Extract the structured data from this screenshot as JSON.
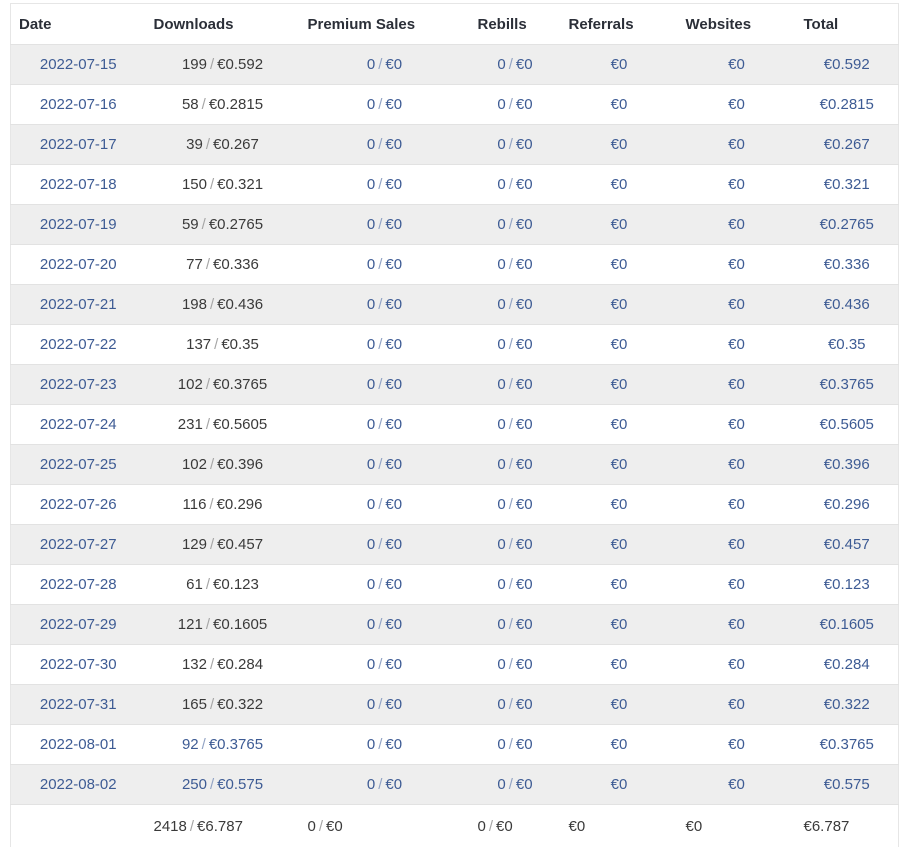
{
  "table": {
    "columns": [
      "Date",
      "Downloads",
      "Premium Sales",
      "Rebills",
      "Referrals",
      "Websites",
      "Total"
    ],
    "separator": "/",
    "rows": [
      {
        "date": "2022-07-15",
        "downloads": {
          "count": "199",
          "amount": "€0.592",
          "link": false
        },
        "premium": {
          "count": "0",
          "amount": "€0"
        },
        "rebills": {
          "count": "0",
          "amount": "€0"
        },
        "referrals": "€0",
        "websites": "€0",
        "total": "€0.592"
      },
      {
        "date": "2022-07-16",
        "downloads": {
          "count": "58",
          "amount": "€0.2815",
          "link": false
        },
        "premium": {
          "count": "0",
          "amount": "€0"
        },
        "rebills": {
          "count": "0",
          "amount": "€0"
        },
        "referrals": "€0",
        "websites": "€0",
        "total": "€0.2815"
      },
      {
        "date": "2022-07-17",
        "downloads": {
          "count": "39",
          "amount": "€0.267",
          "link": false
        },
        "premium": {
          "count": "0",
          "amount": "€0"
        },
        "rebills": {
          "count": "0",
          "amount": "€0"
        },
        "referrals": "€0",
        "websites": "€0",
        "total": "€0.267"
      },
      {
        "date": "2022-07-18",
        "downloads": {
          "count": "150",
          "amount": "€0.321",
          "link": false
        },
        "premium": {
          "count": "0",
          "amount": "€0"
        },
        "rebills": {
          "count": "0",
          "amount": "€0"
        },
        "referrals": "€0",
        "websites": "€0",
        "total": "€0.321"
      },
      {
        "date": "2022-07-19",
        "downloads": {
          "count": "59",
          "amount": "€0.2765",
          "link": false
        },
        "premium": {
          "count": "0",
          "amount": "€0"
        },
        "rebills": {
          "count": "0",
          "amount": "€0"
        },
        "referrals": "€0",
        "websites": "€0",
        "total": "€0.2765"
      },
      {
        "date": "2022-07-20",
        "downloads": {
          "count": "77",
          "amount": "€0.336",
          "link": false
        },
        "premium": {
          "count": "0",
          "amount": "€0"
        },
        "rebills": {
          "count": "0",
          "amount": "€0"
        },
        "referrals": "€0",
        "websites": "€0",
        "total": "€0.336"
      },
      {
        "date": "2022-07-21",
        "downloads": {
          "count": "198",
          "amount": "€0.436",
          "link": false
        },
        "premium": {
          "count": "0",
          "amount": "€0"
        },
        "rebills": {
          "count": "0",
          "amount": "€0"
        },
        "referrals": "€0",
        "websites": "€0",
        "total": "€0.436"
      },
      {
        "date": "2022-07-22",
        "downloads": {
          "count": "137",
          "amount": "€0.35",
          "link": false
        },
        "premium": {
          "count": "0",
          "amount": "€0"
        },
        "rebills": {
          "count": "0",
          "amount": "€0"
        },
        "referrals": "€0",
        "websites": "€0",
        "total": "€0.35"
      },
      {
        "date": "2022-07-23",
        "downloads": {
          "count": "102",
          "amount": "€0.3765",
          "link": false
        },
        "premium": {
          "count": "0",
          "amount": "€0"
        },
        "rebills": {
          "count": "0",
          "amount": "€0"
        },
        "referrals": "€0",
        "websites": "€0",
        "total": "€0.3765"
      },
      {
        "date": "2022-07-24",
        "downloads": {
          "count": "231",
          "amount": "€0.5605",
          "link": false
        },
        "premium": {
          "count": "0",
          "amount": "€0"
        },
        "rebills": {
          "count": "0",
          "amount": "€0"
        },
        "referrals": "€0",
        "websites": "€0",
        "total": "€0.5605"
      },
      {
        "date": "2022-07-25",
        "downloads": {
          "count": "102",
          "amount": "€0.396",
          "link": false
        },
        "premium": {
          "count": "0",
          "amount": "€0"
        },
        "rebills": {
          "count": "0",
          "amount": "€0"
        },
        "referrals": "€0",
        "websites": "€0",
        "total": "€0.396"
      },
      {
        "date": "2022-07-26",
        "downloads": {
          "count": "116",
          "amount": "€0.296",
          "link": false
        },
        "premium": {
          "count": "0",
          "amount": "€0"
        },
        "rebills": {
          "count": "0",
          "amount": "€0"
        },
        "referrals": "€0",
        "websites": "€0",
        "total": "€0.296"
      },
      {
        "date": "2022-07-27",
        "downloads": {
          "count": "129",
          "amount": "€0.457",
          "link": false
        },
        "premium": {
          "count": "0",
          "amount": "€0"
        },
        "rebills": {
          "count": "0",
          "amount": "€0"
        },
        "referrals": "€0",
        "websites": "€0",
        "total": "€0.457"
      },
      {
        "date": "2022-07-28",
        "downloads": {
          "count": "61",
          "amount": "€0.123",
          "link": false
        },
        "premium": {
          "count": "0",
          "amount": "€0"
        },
        "rebills": {
          "count": "0",
          "amount": "€0"
        },
        "referrals": "€0",
        "websites": "€0",
        "total": "€0.123"
      },
      {
        "date": "2022-07-29",
        "downloads": {
          "count": "121",
          "amount": "€0.1605",
          "link": false
        },
        "premium": {
          "count": "0",
          "amount": "€0"
        },
        "rebills": {
          "count": "0",
          "amount": "€0"
        },
        "referrals": "€0",
        "websites": "€0",
        "total": "€0.1605"
      },
      {
        "date": "2022-07-30",
        "downloads": {
          "count": "132",
          "amount": "€0.284",
          "link": false
        },
        "premium": {
          "count": "0",
          "amount": "€0"
        },
        "rebills": {
          "count": "0",
          "amount": "€0"
        },
        "referrals": "€0",
        "websites": "€0",
        "total": "€0.284"
      },
      {
        "date": "2022-07-31",
        "downloads": {
          "count": "165",
          "amount": "€0.322",
          "link": false
        },
        "premium": {
          "count": "0",
          "amount": "€0"
        },
        "rebills": {
          "count": "0",
          "amount": "€0"
        },
        "referrals": "€0",
        "websites": "€0",
        "total": "€0.322"
      },
      {
        "date": "2022-08-01",
        "downloads": {
          "count": "92",
          "amount": "€0.3765",
          "link": true
        },
        "premium": {
          "count": "0",
          "amount": "€0"
        },
        "rebills": {
          "count": "0",
          "amount": "€0"
        },
        "referrals": "€0",
        "websites": "€0",
        "total": "€0.3765"
      },
      {
        "date": "2022-08-02",
        "downloads": {
          "count": "250",
          "amount": "€0.575",
          "link": true
        },
        "premium": {
          "count": "0",
          "amount": "€0"
        },
        "rebills": {
          "count": "0",
          "amount": "€0"
        },
        "referrals": "€0",
        "websites": "€0",
        "total": "€0.575"
      }
    ],
    "footer": {
      "downloads": {
        "count": "2418",
        "amount": "€6.787"
      },
      "premium": {
        "count": "0",
        "amount": "€0"
      },
      "rebills": {
        "count": "0",
        "amount": "€0"
      },
      "referrals": "€0",
      "websites": "€0",
      "total": "€6.787"
    }
  },
  "colors": {
    "link_blue": "#3d5b94",
    "zebra_row": "#eeeeee",
    "row_border": "#e2e2e2",
    "header_text": "#2b2f38",
    "body_text": "#3a3a3a",
    "separator_gray": "#a6a6a6"
  }
}
